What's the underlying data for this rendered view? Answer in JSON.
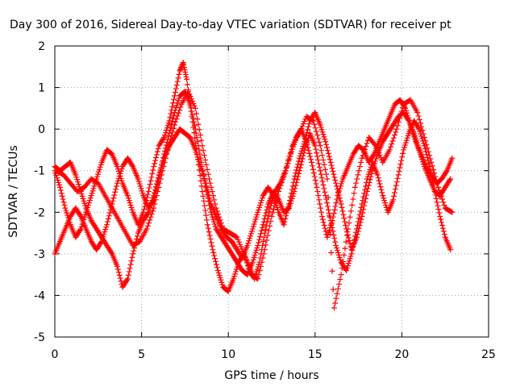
{
  "chart_data": {
    "type": "scatter",
    "title": "Day 300 of 2016, Sidereal Day-to-day VTEC variation (SDTVAR) for receiver pt",
    "xlabel": "GPS time / hours",
    "ylabel": "SDTVAR / TECUs",
    "xlim": [
      0,
      25
    ],
    "ylim": [
      -5,
      2
    ],
    "xticks": [
      0,
      5,
      10,
      15,
      20,
      25
    ],
    "yticks": [
      -5,
      -4,
      -3,
      -2,
      -1,
      0,
      1,
      2
    ],
    "grid": true,
    "legend": "none",
    "marker": "+",
    "marker_color": "#ff0000",
    "series": [
      {
        "x": [
          0.0,
          0.3,
          0.6,
          0.9,
          1.2,
          1.5,
          1.8,
          2.1,
          2.4,
          2.7,
          3.0,
          3.3,
          3.6,
          3.9,
          4.2,
          4.5,
          4.8,
          5.1,
          5.4,
          5.7,
          6.0,
          6.3,
          6.6,
          6.9,
          7.2,
          7.4,
          7.6,
          7.9,
          8.2,
          8.5,
          8.8,
          9.1,
          9.4,
          9.7,
          10.0,
          10.3,
          10.6,
          10.9,
          11.2,
          11.5,
          11.8,
          12.1,
          12.4,
          12.7,
          13.0,
          13.3,
          13.6,
          13.9,
          14.2,
          14.5,
          14.8,
          15.1,
          15.4,
          15.7,
          16.0,
          16.3,
          16.6,
          16.9,
          17.2,
          17.5,
          17.8,
          18.1,
          18.4,
          18.7,
          19.0,
          19.3,
          19.6,
          19.9,
          20.2,
          20.5,
          20.8,
          21.1,
          21.4,
          21.7,
          22.0,
          22.3,
          22.6,
          22.9
        ],
        "y": [
          -1.0,
          -1.4,
          -1.9,
          -2.3,
          -2.6,
          -2.4,
          -2.0,
          -1.6,
          -1.2,
          -0.8,
          -0.5,
          -0.6,
          -0.9,
          -1.3,
          -1.6,
          -2.0,
          -2.3,
          -2.0,
          -1.5,
          -0.9,
          -0.4,
          -0.2,
          0.2,
          0.8,
          1.4,
          1.6,
          1.2,
          0.3,
          -0.6,
          -1.5,
          -2.3,
          -2.9,
          -3.4,
          -3.8,
          -3.9,
          -3.6,
          -3.2,
          -3.0,
          -3.3,
          -3.6,
          -3.2,
          -2.5,
          -1.9,
          -1.5,
          -1.3,
          -1.0,
          -0.6,
          -0.2,
          0.0,
          -0.3,
          -0.8,
          -1.4,
          -2.1,
          -2.6,
          -2.2,
          -1.6,
          -1.2,
          -0.9,
          -0.6,
          -0.4,
          -0.5,
          -0.8,
          -0.6,
          -0.3,
          0.0,
          0.3,
          0.6,
          0.7,
          0.5,
          0.1,
          -0.3,
          -0.6,
          -0.9,
          -1.1,
          -1.3,
          -1.2,
          -1.0,
          -0.7
        ]
      },
      {
        "x": [
          0.0,
          0.3,
          0.6,
          0.9,
          1.2,
          1.5,
          1.8,
          2.1,
          2.4,
          2.7,
          3.0,
          3.3,
          3.6,
          3.9,
          4.2,
          4.5,
          4.8,
          5.1,
          5.4,
          5.7,
          6.0,
          6.3,
          6.6,
          6.9,
          7.2,
          7.5,
          7.8,
          8.1,
          8.4,
          8.7,
          9.0,
          9.3,
          9.6,
          9.9,
          10.2,
          10.5,
          10.8,
          11.1,
          11.4,
          11.7,
          12.0,
          12.3,
          12.6,
          12.9,
          13.2,
          13.5,
          13.8,
          14.1,
          14.4,
          14.7,
          15.0,
          15.3,
          15.6,
          15.9,
          16.2,
          16.5,
          16.8,
          17.1,
          17.4,
          17.7,
          18.0,
          18.3,
          18.6,
          18.9,
          19.2,
          19.5,
          19.8,
          20.1,
          20.4,
          20.7,
          21.0,
          21.3,
          21.6,
          21.9,
          22.2,
          22.5,
          22.8
        ],
        "y": [
          -3.0,
          -2.7,
          -2.4,
          -2.1,
          -1.9,
          -2.1,
          -2.4,
          -2.7,
          -2.9,
          -2.7,
          -2.3,
          -1.8,
          -1.3,
          -0.9,
          -0.7,
          -0.9,
          -1.2,
          -1.6,
          -1.9,
          -1.7,
          -1.2,
          -0.6,
          -0.1,
          0.4,
          0.8,
          0.9,
          0.6,
          0.0,
          -0.7,
          -1.4,
          -2.0,
          -2.4,
          -2.6,
          -2.8,
          -3.0,
          -3.2,
          -3.4,
          -3.5,
          -3.2,
          -2.8,
          -2.3,
          -1.8,
          -1.5,
          -1.7,
          -2.0,
          -1.9,
          -1.5,
          -1.0,
          -0.5,
          -0.1,
          -0.4,
          -1.0,
          -1.6,
          -2.2,
          -2.8,
          -3.2,
          -3.4,
          -3.0,
          -2.4,
          -1.8,
          -1.2,
          -0.8,
          -1.1,
          -1.6,
          -2.0,
          -1.7,
          -1.1,
          -0.5,
          -0.1,
          0.2,
          0.0,
          -0.4,
          -0.9,
          -1.5,
          -2.1,
          -2.6,
          -2.9
        ]
      },
      {
        "x": [
          0.0,
          0.3,
          0.6,
          0.9,
          1.2,
          1.5,
          1.8,
          2.1,
          2.4,
          2.7,
          3.0,
          3.3,
          3.6,
          3.9,
          4.2,
          4.5,
          4.8,
          5.1,
          5.4,
          5.7,
          6.0,
          6.3,
          6.6,
          6.9,
          7.2,
          7.5,
          7.8,
          8.1,
          8.4,
          8.7,
          9.0,
          9.3,
          9.6,
          9.9,
          10.2,
          10.5,
          10.8,
          11.1,
          11.4,
          11.7,
          12.0,
          12.3,
          12.6,
          12.9,
          13.2,
          13.5,
          13.8,
          14.1,
          14.4,
          14.7,
          15.0,
          15.3,
          15.6,
          15.9,
          16.2,
          16.5,
          16.8,
          17.1,
          17.4,
          17.7,
          18.0,
          18.3,
          18.6,
          18.9,
          19.2,
          19.5,
          19.8,
          20.1,
          20.4,
          20.7,
          21.0,
          21.3,
          21.6,
          21.9,
          22.2,
          22.5,
          22.8
        ],
        "y": [
          -0.9,
          -1.0,
          -0.9,
          -0.8,
          -1.1,
          -1.5,
          -1.9,
          -2.2,
          -2.4,
          -2.6,
          -2.8,
          -3.0,
          -3.3,
          -3.8,
          -3.6,
          -3.0,
          -2.5,
          -2.2,
          -2.0,
          -1.6,
          -1.1,
          -0.7,
          -0.4,
          -0.2,
          0.0,
          -0.1,
          -0.2,
          -0.5,
          -0.9,
          -1.3,
          -1.8,
          -2.1,
          -2.4,
          -2.6,
          -2.7,
          -2.9,
          -3.1,
          -2.8,
          -2.4,
          -2.0,
          -1.6,
          -1.4,
          -1.6,
          -2.0,
          -2.3,
          -1.8,
          -1.2,
          -0.7,
          -0.3,
          0.2,
          0.4,
          0.1,
          -0.3,
          -0.8,
          -1.3,
          -1.8,
          -2.4,
          -2.9,
          -2.6,
          -2.1,
          -1.5,
          -1.0,
          -0.6,
          -0.3,
          -0.1,
          0.1,
          0.3,
          0.4,
          0.2,
          -0.1,
          -0.5,
          -0.9,
          -1.2,
          -1.5,
          -1.6,
          -1.4,
          -1.2
        ]
      },
      {
        "x": [
          0.1,
          0.5,
          0.9,
          1.3,
          1.7,
          2.1,
          2.5,
          2.9,
          3.3,
          3.7,
          4.1,
          4.5,
          4.9,
          5.3,
          5.7,
          6.1,
          6.5,
          6.9,
          7.3,
          7.7,
          8.1,
          8.5,
          8.9,
          9.3,
          9.7,
          10.1,
          10.5,
          10.9,
          11.3,
          11.7,
          12.1,
          12.5,
          12.9,
          13.3,
          13.7,
          14.1,
          14.5,
          14.9,
          15.3,
          15.7,
          16.1,
          16.5,
          16.9,
          17.3,
          17.7,
          18.1,
          18.5,
          18.9,
          19.3,
          19.7,
          20.1,
          20.5,
          20.9,
          21.3,
          21.7,
          22.1,
          22.5,
          22.9
        ],
        "y": [
          -1.0,
          -1.1,
          -1.3,
          -1.5,
          -1.4,
          -1.2,
          -1.3,
          -1.6,
          -1.9,
          -2.2,
          -2.5,
          -2.8,
          -2.7,
          -2.4,
          -1.9,
          -1.2,
          -0.5,
          0.1,
          0.6,
          0.9,
          0.5,
          -0.4,
          -1.2,
          -1.9,
          -2.4,
          -2.5,
          -2.6,
          -3.0,
          -3.5,
          -3.6,
          -2.9,
          -2.1,
          -1.5,
          -1.0,
          -0.4,
          -0.1,
          0.3,
          0.2,
          -0.4,
          -1.2,
          -4.3,
          -3.5,
          -2.4,
          -1.4,
          -0.7,
          -0.2,
          -0.4,
          -0.8,
          -0.5,
          0.0,
          0.6,
          0.7,
          0.4,
          -0.2,
          -0.8,
          -1.4,
          -1.9,
          -2.0
        ]
      }
    ]
  }
}
